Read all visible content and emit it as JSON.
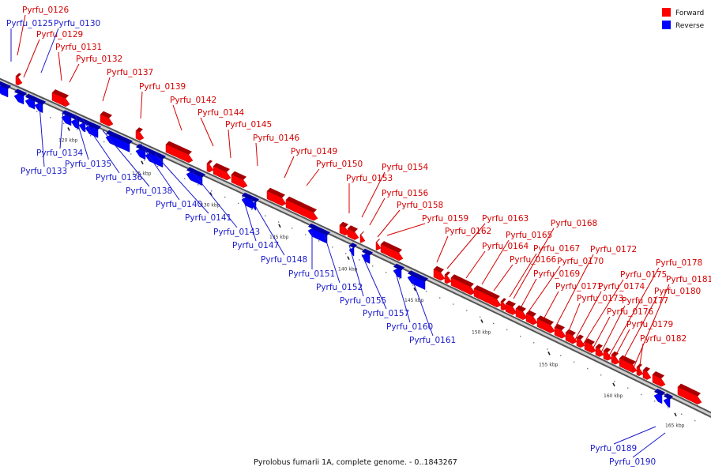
{
  "caption": "Pyrolobus fumarii 1A, complete genome. - 0..1843267",
  "legend": [
    {
      "label": "Forward",
      "color": "#ff0000"
    },
    {
      "label": "Reverse",
      "color": "#0000ff"
    }
  ],
  "colors": {
    "forward": "#ff0000",
    "reverse": "#0000ff",
    "backbone": "#9a9a9a",
    "label_forward": "#d40000",
    "label_reverse": "#1a1acc"
  },
  "scale_labels": [
    "120 kbp",
    "125 kbp",
    "130 kbp",
    "135 kbp",
    "140 kbp",
    "145 kbp",
    "150 kbp",
    "155 kbp",
    "160 kbp",
    "165 kbp"
  ],
  "forward_genes": [
    "Pyrfu_0126",
    "Pyrfu_0129",
    "Pyrfu_0131",
    "Pyrfu_0132",
    "Pyrfu_0137",
    "Pyrfu_0139",
    "Pyrfu_0142",
    "Pyrfu_0144",
    "Pyrfu_0145",
    "Pyrfu_0146",
    "Pyrfu_0149",
    "Pyrfu_0150",
    "Pyrfu_0153",
    "Pyrfu_0154",
    "Pyrfu_0156",
    "Pyrfu_0158",
    "Pyrfu_0159",
    "Pyrfu_0162",
    "Pyrfu_0163",
    "Pyrfu_0164",
    "Pyrfu_0165",
    "Pyrfu_0166",
    "Pyrfu_0167",
    "Pyrfu_0168",
    "Pyrfu_0169",
    "Pyrfu_0170",
    "Pyrfu_0171",
    "Pyrfu_0172",
    "Pyrfu_0173",
    "Pyrfu_0174",
    "Pyrfu_0175",
    "Pyrfu_0176",
    "Pyrfu_0177",
    "Pyrfu_0178",
    "Pyrfu_0179",
    "Pyrfu_0180",
    "Pyrfu_0181",
    "Pyrfu_0182"
  ],
  "reverse_genes": [
    "Pyrfu_0125",
    "Pyrfu_0130",
    "Pyrfu_0133",
    "Pyrfu_0134",
    "Pyrfu_0135",
    "Pyrfu_0136",
    "Pyrfu_0138",
    "Pyrfu_0140",
    "Pyrfu_0141",
    "Pyrfu_0143",
    "Pyrfu_0147",
    "Pyrfu_0148",
    "Pyrfu_0151",
    "Pyrfu_0152",
    "Pyrfu_0155",
    "Pyrfu_0157",
    "Pyrfu_0160",
    "Pyrfu_0161",
    "Pyrfu_0189",
    "Pyrfu_0190"
  ]
}
